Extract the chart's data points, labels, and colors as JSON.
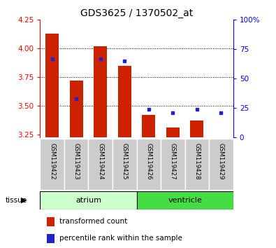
{
  "title": "GDS3625 / 1370502_at",
  "samples": [
    "GSM119422",
    "GSM119423",
    "GSM119424",
    "GSM119425",
    "GSM119426",
    "GSM119427",
    "GSM119428",
    "GSM119429"
  ],
  "transformed_count": [
    4.13,
    3.72,
    4.02,
    3.85,
    3.42,
    3.31,
    3.37,
    3.22
  ],
  "baseline": 3.22,
  "percentile_rank": [
    67,
    33,
    67,
    65,
    24,
    21,
    24,
    21
  ],
  "ylim_left": [
    3.22,
    4.25
  ],
  "ylim_right": [
    0,
    100
  ],
  "yticks_left": [
    3.25,
    3.5,
    3.75,
    4.0,
    4.25
  ],
  "yticks_right": [
    0,
    25,
    50,
    75,
    100
  ],
  "bar_color": "#cc2200",
  "dot_color": "#2222cc",
  "atrium_color": "#ccffcc",
  "ventricle_color": "#44dd44",
  "label_bg": "#cccccc",
  "legend": [
    {
      "color": "#cc2200",
      "label": "transformed count"
    },
    {
      "color": "#2222cc",
      "label": "percentile rank within the sample"
    }
  ]
}
